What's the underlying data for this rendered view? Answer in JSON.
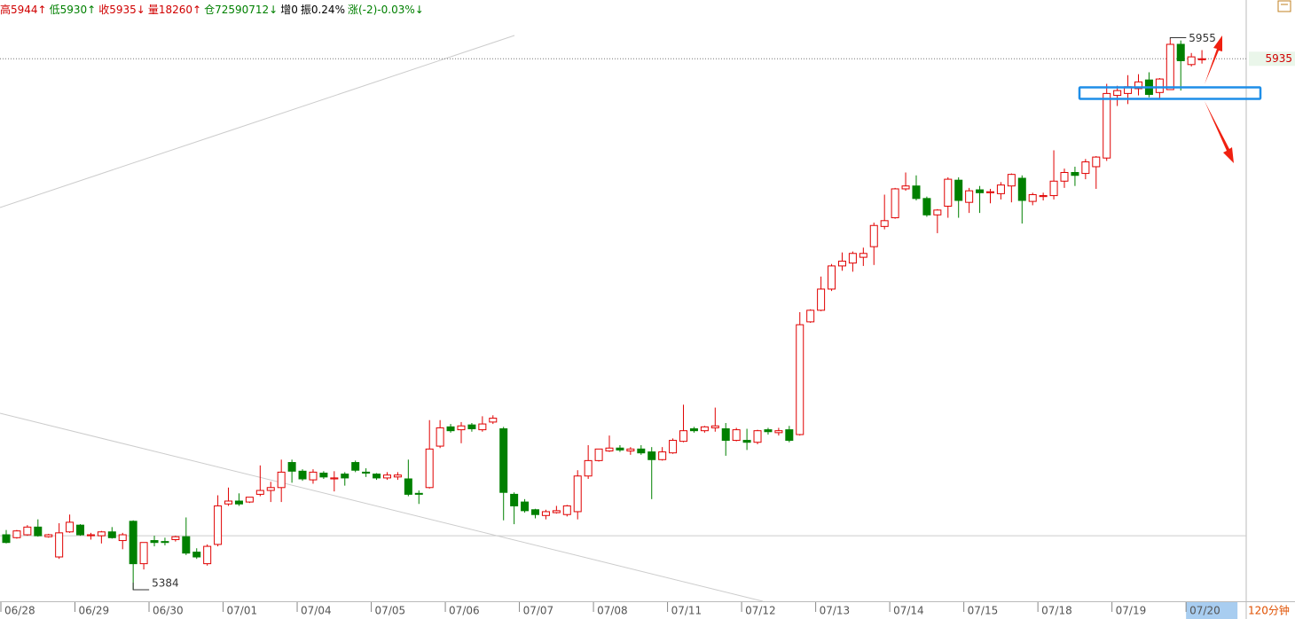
{
  "chart_data": {
    "type": "candlestick",
    "header": [
      {
        "text": "高5944↑",
        "color": "#d00000"
      },
      {
        "text": "低5930↑",
        "color": "#008000"
      },
      {
        "text": "收5935↓",
        "color": "#d00000"
      },
      {
        "text": "量18260↑",
        "color": "#d00000"
      },
      {
        "text": "仓72590712↓",
        "color": "#008000"
      },
      {
        "text": "增0",
        "color": "#000000"
      },
      {
        "text": "振0.24%",
        "color": "#000000"
      },
      {
        "text": "涨(-2)-0.03%↓",
        "color": "#008000"
      }
    ],
    "period": "120分钟",
    "categories": [
      "06/28",
      null,
      null,
      null,
      null,
      null,
      null,
      "06/29",
      null,
      null,
      null,
      null,
      null,
      null,
      "06/30",
      null,
      null,
      null,
      null,
      null,
      null,
      "07/01",
      null,
      null,
      null,
      null,
      null,
      null,
      "07/04",
      null,
      null,
      null,
      null,
      null,
      null,
      "07/05",
      null,
      null,
      null,
      null,
      null,
      null,
      "07/06",
      null,
      null,
      null,
      null,
      null,
      null,
      "07/07",
      null,
      null,
      null,
      null,
      null,
      null,
      "07/08",
      null,
      null,
      null,
      null,
      null,
      null,
      "07/11",
      null,
      null,
      null,
      null,
      null,
      null,
      "07/12",
      null,
      null,
      null,
      null,
      null,
      null,
      "07/13",
      null,
      null,
      null,
      null,
      null,
      null,
      "07/14",
      null,
      null,
      null,
      null,
      null,
      null,
      "07/15",
      null,
      null,
      null,
      null,
      null,
      null,
      "07/18",
      null,
      null,
      null,
      null,
      null,
      null,
      "07/19",
      null,
      null,
      null,
      null,
      null,
      null,
      "07/20",
      null
    ],
    "selected_category": 112,
    "open": [
      5441,
      5438,
      5441,
      5449,
      5439,
      5418,
      5444,
      5451,
      5440,
      5440,
      5444,
      5435,
      5455,
      5411,
      5435,
      5434,
      5436,
      5439,
      5423,
      5411,
      5431,
      5473,
      5476,
      5475,
      5483,
      5487,
      5490,
      5516,
      5507,
      5498,
      5505,
      5499,
      5504,
      5516,
      5506,
      5504,
      5500,
      5501,
      5499,
      5484,
      5490,
      5533,
      5553,
      5550,
      5555,
      5550,
      5558,
      5551,
      5483,
      5475,
      5467,
      5461,
      5464,
      5462,
      5465,
      5502,
      5518,
      5528,
      5531,
      5528,
      5530,
      5527,
      5519,
      5526,
      5538,
      5551,
      5549,
      5552,
      5551,
      5539,
      5539,
      5537,
      5550,
      5547,
      5550,
      5545,
      5662,
      5674,
      5696,
      5720,
      5723,
      5729,
      5740,
      5761,
      5770,
      5800,
      5803,
      5790,
      5773,
      5782,
      5809,
      5786,
      5799,
      5796,
      5795,
      5803,
      5811,
      5787,
      5792,
      5793,
      5808,
      5817,
      5816,
      5823,
      5832,
      5897,
      5899,
      5904,
      5913,
      5900,
      5903,
      5950,
      5929,
      5934
    ],
    "high": [
      5446,
      5446,
      5451,
      5457,
      5442,
      5453,
      5462,
      5452,
      5443,
      5445,
      5449,
      5443,
      5456,
      5433,
      5440,
      5438,
      5440,
      5459,
      5427,
      5431,
      5482,
      5490,
      5484,
      5480,
      5513,
      5496,
      5519,
      5519,
      5509,
      5509,
      5507,
      5507,
      5506,
      5518,
      5510,
      5505,
      5506,
      5506,
      5519,
      5487,
      5560,
      5560,
      5556,
      5558,
      5557,
      5564,
      5565,
      5553,
      5485,
      5478,
      5468,
      5467,
      5471,
      5472,
      5508,
      5534,
      5530,
      5544,
      5534,
      5532,
      5534,
      5532,
      5532,
      5541,
      5576,
      5553,
      5554,
      5573,
      5557,
      5552,
      5551,
      5550,
      5552,
      5552,
      5554,
      5672,
      5675,
      5709,
      5722,
      5734,
      5735,
      5739,
      5765,
      5794,
      5801,
      5817,
      5814,
      5792,
      5779,
      5812,
      5812,
      5801,
      5803,
      5800,
      5807,
      5816,
      5814,
      5796,
      5796,
      5840,
      5821,
      5823,
      5831,
      5834,
      5909,
      5907,
      5918,
      5919,
      5921,
      5915,
      5955,
      5954,
      5941,
      5944
    ],
    "low": [
      5432,
      5437,
      5440,
      5439,
      5438,
      5416,
      5443,
      5440,
      5436,
      5432,
      5437,
      5426,
      5384,
      5405,
      5429,
      5430,
      5434,
      5420,
      5416,
      5409,
      5429,
      5471,
      5471,
      5474,
      5481,
      5475,
      5475,
      5495,
      5497,
      5494,
      5499,
      5486,
      5492,
      5506,
      5501,
      5498,
      5498,
      5498,
      5481,
      5473,
      5489,
      5531,
      5547,
      5536,
      5548,
      5548,
      5556,
      5456,
      5452,
      5464,
      5458,
      5457,
      5463,
      5460,
      5457,
      5499,
      5517,
      5527,
      5527,
      5524,
      5524,
      5478,
      5518,
      5525,
      5537,
      5547,
      5547,
      5548,
      5523,
      5538,
      5529,
      5535,
      5545,
      5544,
      5537,
      5544,
      5661,
      5673,
      5694,
      5715,
      5714,
      5720,
      5721,
      5758,
      5769,
      5798,
      5788,
      5771,
      5754,
      5770,
      5770,
      5775,
      5775,
      5785,
      5789,
      5786,
      5764,
      5783,
      5788,
      5789,
      5801,
      5803,
      5810,
      5800,
      5829,
      5886,
      5888,
      5897,
      5895,
      5894,
      5903,
      5902,
      5927,
      5930
    ],
    "close": [
      5433,
      5445,
      5449,
      5440,
      5441,
      5443,
      5454,
      5441,
      5441,
      5444,
      5438,
      5441,
      5411,
      5433,
      5433,
      5433,
      5439,
      5422,
      5418,
      5429,
      5471,
      5476,
      5473,
      5480,
      5487,
      5490,
      5506,
      5507,
      5499,
      5506,
      5501,
      5500,
      5500,
      5508,
      5505,
      5500,
      5503,
      5503,
      5483,
      5483,
      5530,
      5552,
      5549,
      5554,
      5551,
      5556,
      5562,
      5485,
      5471,
      5466,
      5462,
      5465,
      5466,
      5471,
      5502,
      5518,
      5530,
      5531,
      5529,
      5530,
      5526,
      5519,
      5527,
      5539,
      5549,
      5549,
      5553,
      5554,
      5539,
      5550,
      5537,
      5549,
      5548,
      5549,
      5539,
      5659,
      5674,
      5696,
      5720,
      5725,
      5733,
      5733,
      5762,
      5767,
      5800,
      5803,
      5790,
      5773,
      5778,
      5810,
      5788,
      5798,
      5796,
      5797,
      5804,
      5815,
      5788,
      5794,
      5793,
      5808,
      5817,
      5814,
      5828,
      5833,
      5899,
      5902,
      5906,
      5911,
      5898,
      5914,
      5950,
      5933,
      5937,
      5935
    ],
    "up_color": "#e00000",
    "down_color": "#008000",
    "ylim": [
      5372,
      5996
    ],
    "last_price": 5935,
    "reference_line": 5440,
    "max_label": 5955,
    "min_label": 5384
  }
}
